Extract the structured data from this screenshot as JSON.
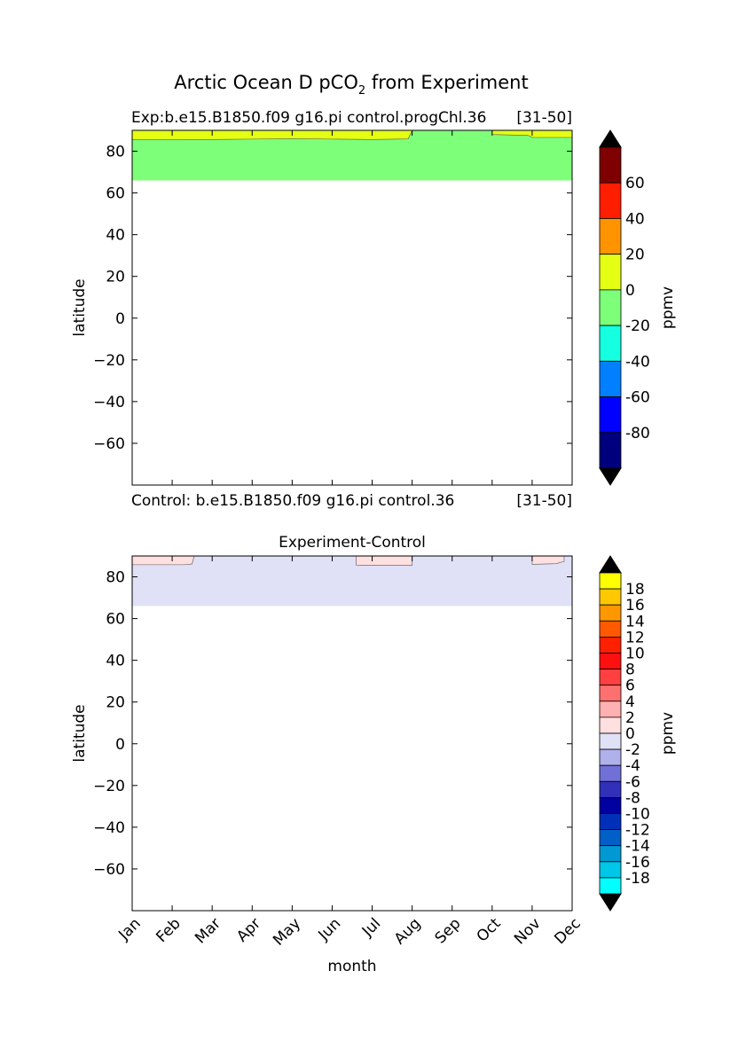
{
  "figure": {
    "title_main": "Arctic Ocean D pCO",
    "title_sub": "2",
    "title_rest": " from Experiment"
  },
  "chart_data": [
    {
      "type": "heatmap",
      "title_left": "Exp:b.e15.B1850.f09 g16.pi control.progChl.36",
      "title_right": "[31-50]",
      "xlabel": "",
      "ylabel": "latitude",
      "ylim": [
        -80,
        90
      ],
      "yticks": [
        80,
        60,
        40,
        20,
        0,
        -20,
        -40,
        -60
      ],
      "ytick_labels": [
        "80",
        "60",
        "40",
        "20",
        "0",
        "−20",
        "−40",
        "−60"
      ],
      "months": [
        "Jan",
        "Feb",
        "Mar",
        "Apr",
        "May",
        "Jun",
        "Jul",
        "Aug",
        "Sep",
        "Oct",
        "Nov",
        "Dec"
      ],
      "data_region_lat": [
        66,
        90
      ],
      "background_band": {
        "lat_range": [
          66,
          85.7
        ],
        "value_range": [
          -20,
          0
        ]
      },
      "contour_boundary": [
        {
          "month": 1,
          "lat": 85.5
        },
        {
          "month": 2,
          "lat": 85.5
        },
        {
          "month": 3,
          "lat": 85.6
        },
        {
          "month": 4,
          "lat": 85.8
        },
        {
          "month": 5,
          "lat": 86.0
        },
        {
          "month": 6,
          "lat": 85.8
        },
        {
          "month": 7,
          "lat": 85.6
        },
        {
          "month": 7.9,
          "lat": 85.9
        },
        {
          "month": 8,
          "lat": 90
        },
        {
          "month": 10,
          "lat": 90
        },
        {
          "month": 10,
          "lat": 88.0
        },
        {
          "month": 10.9,
          "lat": 87.6
        },
        {
          "month": 11,
          "lat": 86.6
        },
        {
          "month": 12,
          "lat": 86.6
        }
      ],
      "upper_band": {
        "value_range": [
          0,
          20
        ]
      },
      "colorbar": {
        "label": "ppmv",
        "colors": [
          "#00007f",
          "#0000ff",
          "#0080ff",
          "#15ffe1",
          "#7dff7a",
          "#e4ff13",
          "#ff9400",
          "#ff1e00",
          "#7f0000"
        ],
        "boundaries": [
          -100,
          -80,
          -60,
          -40,
          -20,
          0,
          20,
          40,
          60,
          80
        ],
        "tick_labels": [
          "60",
          "40",
          "20",
          "0",
          "-20",
          "-40",
          "-60",
          "-80"
        ],
        "tick_values": [
          60,
          40,
          20,
          0,
          -20,
          -40,
          -60,
          -80
        ],
        "under_color": "#000000",
        "over_color": "#000000"
      }
    },
    {
      "type": "heatmap",
      "title_left": "Control: b.e15.B1850.f09 g16.pi control.36",
      "title_right": "[31-50]",
      "title_center": "Experiment-Control",
      "xlabel": "month",
      "ylabel": "latitude",
      "ylim": [
        -80,
        90
      ],
      "yticks": [
        80,
        60,
        40,
        20,
        0,
        -20,
        -40,
        -60
      ],
      "ytick_labels": [
        "80",
        "60",
        "40",
        "20",
        "0",
        "−20",
        "−40",
        "−60"
      ],
      "months": [
        "Jan",
        "Feb",
        "Mar",
        "Apr",
        "May",
        "Jun",
        "Jul",
        "Aug",
        "Sep",
        "Oct",
        "Nov",
        "Dec"
      ],
      "data_region_lat": [
        66,
        90
      ],
      "background_band": {
        "lat_range": [
          66,
          90
        ],
        "value_range": [
          -2,
          0
        ]
      },
      "patches": [
        {
          "value_range": [
            0,
            2
          ],
          "points": [
            [
              1,
              90
            ],
            [
              1,
              85.8
            ],
            [
              2.3,
              85.8
            ],
            [
              2.5,
              86.2
            ],
            [
              2.55,
              90
            ]
          ]
        },
        {
          "value_range": [
            0,
            2
          ],
          "points": [
            [
              6.6,
              90
            ],
            [
              6.6,
              85.6
            ],
            [
              6.9,
              85.5
            ],
            [
              8,
              85.5
            ],
            [
              8,
              90
            ]
          ]
        },
        {
          "value_range": [
            0,
            2
          ],
          "points": [
            [
              11,
              90
            ],
            [
              11,
              86.0
            ],
            [
              11.6,
              86.3
            ],
            [
              11.8,
              87.4
            ],
            [
              11.8,
              90
            ]
          ]
        }
      ],
      "colorbar": {
        "label": "ppmv",
        "colors": [
          "#00ffff",
          "#00c6e8",
          "#0099d4",
          "#0060c8",
          "#0030b8",
          "#0000a0",
          "#3030b8",
          "#7070d6",
          "#b0b0ea",
          "#e0e0f7",
          "#ffe0e0",
          "#ffb0b0",
          "#ff7070",
          "#ff4040",
          "#ff1010",
          "#ff2000",
          "#ff5a00",
          "#ff9800",
          "#ffc800",
          "#ffff00"
        ],
        "boundaries": [
          -20,
          -18,
          -16,
          -14,
          -12,
          -10,
          -8,
          -6,
          -4,
          -2,
          0,
          2,
          4,
          6,
          8,
          10,
          12,
          14,
          16,
          18,
          20
        ],
        "tick_labels": [
          "18",
          "16",
          "14",
          "12",
          "10",
          "8",
          "6",
          "4",
          "2",
          "0",
          "-2",
          "-4",
          "-6",
          "-8",
          "-10",
          "-12",
          "-14",
          "-16",
          "-18"
        ],
        "tick_values": [
          18,
          16,
          14,
          12,
          10,
          8,
          6,
          4,
          2,
          0,
          -2,
          -4,
          -6,
          -8,
          -10,
          -12,
          -14,
          -16,
          -18
        ],
        "under_color": "#000000",
        "over_color": "#000000"
      }
    }
  ]
}
